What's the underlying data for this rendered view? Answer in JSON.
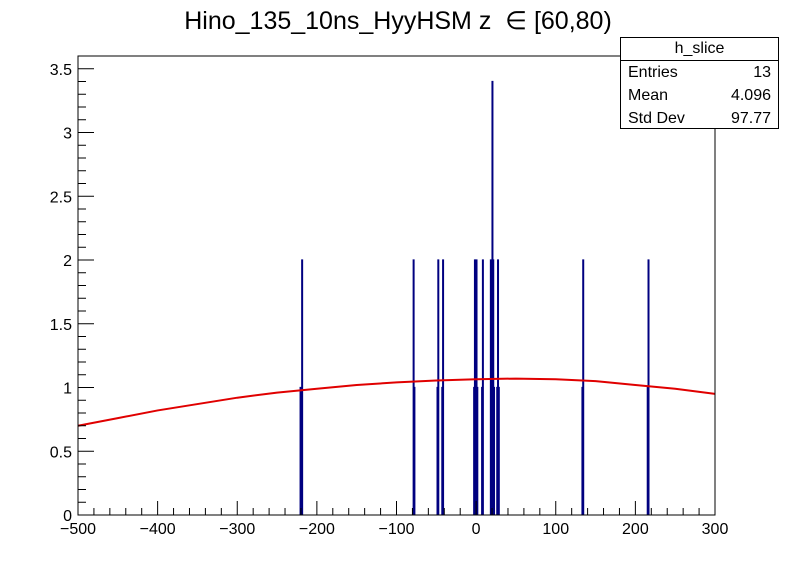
{
  "title": "Hino_135_10ns_HyyHSM z  ∈ [60,80)",
  "stats": {
    "name": "h_slice",
    "rows": [
      {
        "label": "Entries",
        "value": "13"
      },
      {
        "label": "Mean",
        "value": "4.096"
      },
      {
        "label": "Std Dev",
        "value": "97.77"
      }
    ]
  },
  "colors": {
    "histogram": "#000080",
    "fit": "#e00000",
    "frame": "#000000"
  },
  "chart_data": {
    "type": "bar",
    "title": "Hino_135_10ns_HyyHSM z  ∈ [60,80)",
    "xlim": [
      -500,
      300
    ],
    "ylim": [
      0,
      3.6
    ],
    "x_ticks": [
      -500,
      -400,
      -300,
      -200,
      -100,
      0,
      100,
      200,
      300
    ],
    "x_tick_labels": [
      "−500",
      "−400",
      "−300",
      "−200",
      "−100",
      "0",
      "100",
      "200",
      "300"
    ],
    "y_ticks": [
      0,
      0.5,
      1,
      1.5,
      2,
      2.5,
      3,
      3.5
    ],
    "y_tick_labels": [
      "0",
      "0.5",
      "1",
      "1.5",
      "2",
      "2.5",
      "3",
      "3.5"
    ],
    "grid": false,
    "legend": "top-right",
    "bin_width": 1,
    "bins": [
      {
        "x": -221,
        "height": 1
      },
      {
        "x": -219,
        "height": 2
      },
      {
        "x": -79,
        "height": 2
      },
      {
        "x": -78,
        "height": 1
      },
      {
        "x": -49,
        "height": 1
      },
      {
        "x": -48,
        "height": 2
      },
      {
        "x": -43,
        "height": 1
      },
      {
        "x": -42,
        "height": 2
      },
      {
        "x": -3,
        "height": 1
      },
      {
        "x": -2,
        "height": 2
      },
      {
        "x": 0,
        "height": 2
      },
      {
        "x": 1,
        "height": 1
      },
      {
        "x": 7,
        "height": 1
      },
      {
        "x": 8,
        "height": 2
      },
      {
        "x": 18,
        "height": 2
      },
      {
        "x": 19,
        "height": 1
      },
      {
        "x": 20,
        "height": 3.4
      },
      {
        "x": 21,
        "height": 2
      },
      {
        "x": 22,
        "height": 1
      },
      {
        "x": 26,
        "height": 1
      },
      {
        "x": 27,
        "height": 2
      },
      {
        "x": 28,
        "height": 1
      },
      {
        "x": 133,
        "height": 1
      },
      {
        "x": 134,
        "height": 2
      },
      {
        "x": 215,
        "height": 1
      },
      {
        "x": 216,
        "height": 2
      }
    ],
    "fit_curve": {
      "x": [
        -500,
        -450,
        -400,
        -350,
        -300,
        -250,
        -200,
        -150,
        -100,
        -50,
        0,
        50,
        100,
        150,
        200,
        250,
        300
      ],
      "y": [
        0.7,
        0.76,
        0.82,
        0.87,
        0.92,
        0.96,
        0.99,
        1.02,
        1.04,
        1.055,
        1.065,
        1.07,
        1.065,
        1.05,
        1.02,
        0.99,
        0.95
      ]
    }
  }
}
